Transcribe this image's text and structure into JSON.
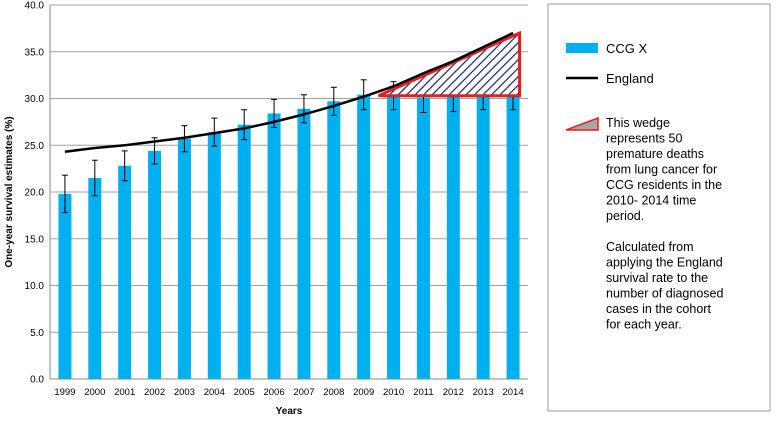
{
  "chart_data": {
    "type": "bar",
    "x_label": "Years",
    "y_label": "One-year survival estimates (%)",
    "categories": [
      "1999",
      "2000",
      "2001",
      "2002",
      "2003",
      "2004",
      "2005",
      "2006",
      "2007",
      "2008",
      "2009",
      "2010",
      "2011",
      "2012",
      "2013",
      "2014"
    ],
    "series": [
      {
        "name": "CCG X",
        "color": "#00b0f0",
        "values": [
          19.8,
          21.5,
          22.8,
          24.4,
          25.7,
          26.4,
          27.2,
          28.4,
          28.9,
          29.7,
          30.4,
          30.3,
          30.1,
          30.2,
          30.2,
          30.3
        ],
        "errors": [
          2.0,
          1.9,
          1.6,
          1.4,
          1.4,
          1.5,
          1.6,
          1.5,
          1.5,
          1.5,
          1.6,
          1.5,
          1.6,
          1.6,
          1.4,
          1.5
        ]
      },
      {
        "name": "England",
        "type": "line",
        "color": "#000000",
        "values": [
          24.3,
          24.7,
          25.0,
          25.4,
          25.8,
          26.3,
          26.8,
          27.5,
          28.3,
          29.2,
          30.2,
          31.3,
          32.7,
          34.0,
          35.5,
          37.0
        ]
      }
    ],
    "wedge": {
      "base": 30.3,
      "start": "2010",
      "end": "2014",
      "color": "#e02020",
      "paragraphs": [
        [
          "This wedge",
          "represents 50",
          "premature deaths",
          "from lung cancer for",
          "CCG residents in the",
          "2010- 2014 time",
          "period."
        ],
        [
          "Calculated from",
          "applying the England",
          "survival rate to the",
          "number of diagnosed",
          "cases in the cohort",
          "for each year."
        ]
      ]
    },
    "ylim": [
      0,
      40
    ],
    "yticks": [
      {
        "value": 0,
        "label": "0.0"
      },
      {
        "value": 5,
        "label": "5.0"
      },
      {
        "value": 10,
        "label": "10.0"
      },
      {
        "value": 15,
        "label": "15.0"
      },
      {
        "value": 20,
        "label": "20.0"
      },
      {
        "value": 25,
        "label": "25.0"
      },
      {
        "value": 30,
        "label": "30.0"
      },
      {
        "value": 35,
        "label": "35.0"
      },
      {
        "value": 40,
        "label": "40.0"
      }
    ],
    "grid": true
  }
}
